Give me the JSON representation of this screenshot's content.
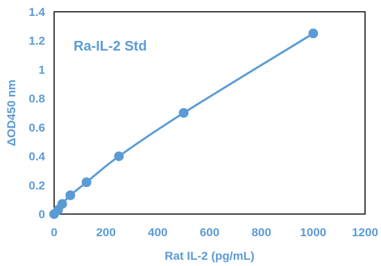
{
  "chart_data": {
    "type": "scatter",
    "title": "Ra-IL-2 Std",
    "xlabel": "Rat IL-2 (pg/mL)",
    "ylabel": "ΔOD450 nm",
    "xlim": [
      0,
      1200
    ],
    "ylim": [
      0,
      1.4
    ],
    "x_ticks": [
      "0",
      "200",
      "400",
      "600",
      "800",
      "1000",
      "1200"
    ],
    "y_ticks": [
      "0",
      "0.2",
      "0.4",
      "0.6",
      "0.8",
      "1",
      "1.2",
      "1.4"
    ],
    "grid": false,
    "legend": "none",
    "series": [
      {
        "x": [
          0,
          15.6,
          31.25,
          62.5,
          125,
          250,
          500,
          1000
        ],
        "y": [
          0,
          0.03,
          0.07,
          0.13,
          0.22,
          0.4,
          0.7,
          1.25
        ],
        "line": "smooth"
      }
    ],
    "colors": {
      "series": "#5b9bd5",
      "marker": "#5b9bd5",
      "text": "#5b9bd5",
      "frame": "#000000"
    }
  }
}
